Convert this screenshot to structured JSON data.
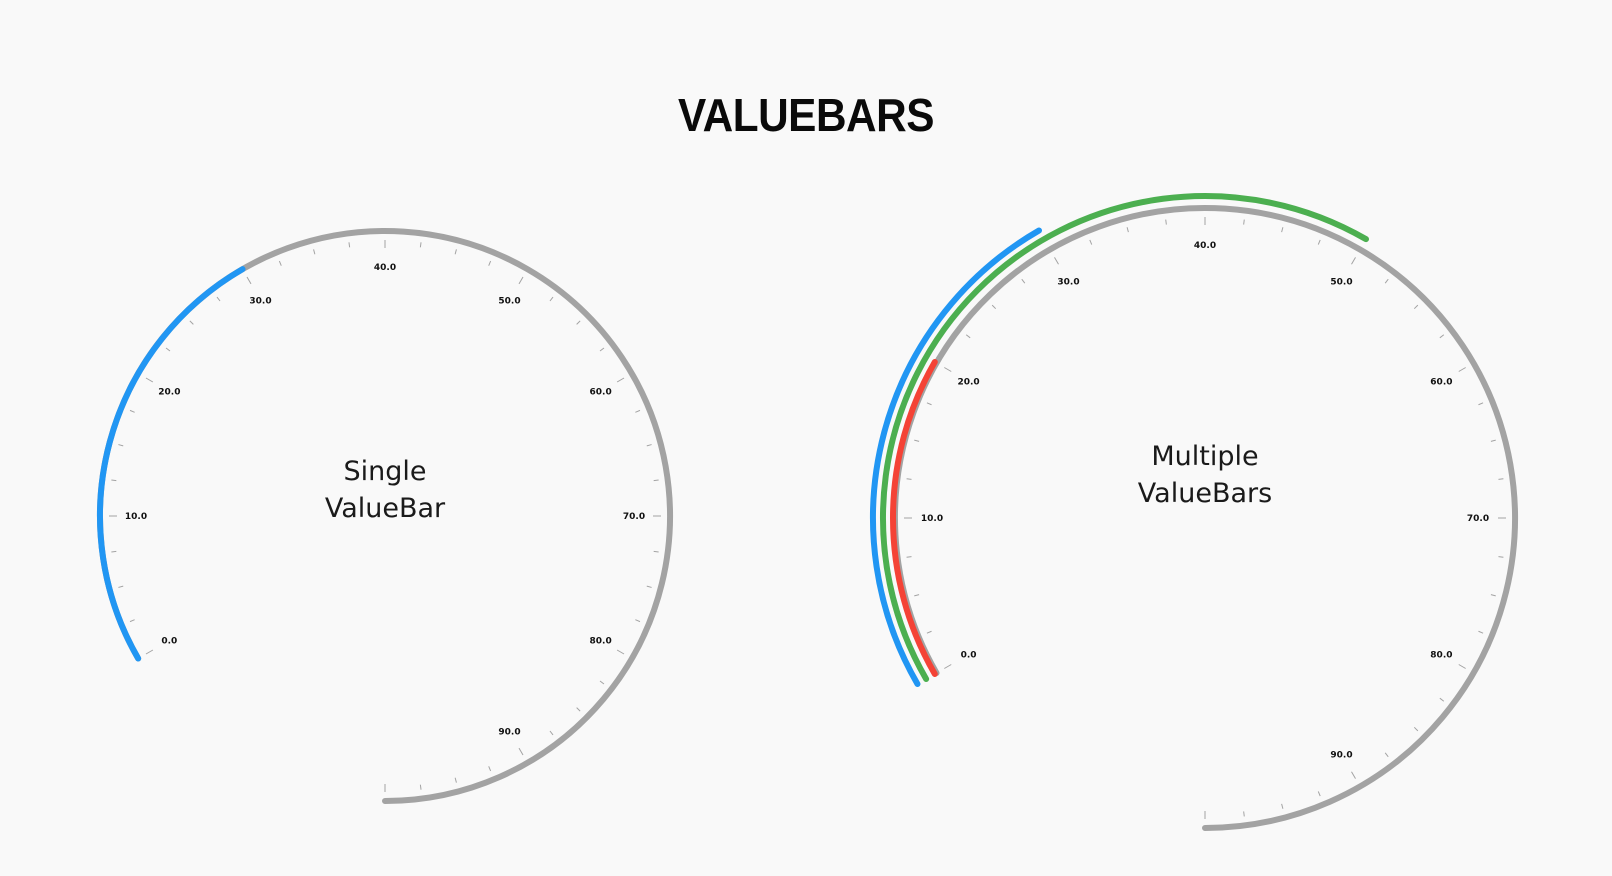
{
  "page": {
    "title": "VALUEBARS"
  },
  "colors": {
    "track": "#a3a3a3",
    "tick": "#a3a3a3",
    "blue": "#2196f3",
    "green": "#4caf50",
    "red": "#f44336"
  },
  "chart_data": [
    {
      "type": "gauge",
      "name": "single",
      "range": [
        0,
        100
      ],
      "start_angle_deg": 240,
      "sweep_deg": 300,
      "tick_labels": [
        "0.0",
        "10.0",
        "20.0",
        "30.0",
        "40.0",
        "50.0",
        "60.0",
        "70.0",
        "80.0",
        "90.0"
      ],
      "center_text": [
        "Single",
        "ValueBar"
      ],
      "value_bars": [
        {
          "color": "blue",
          "value": 30
        }
      ]
    },
    {
      "type": "gauge",
      "name": "multiple",
      "range": [
        0,
        100
      ],
      "start_angle_deg": 240,
      "sweep_deg": 300,
      "tick_labels": [
        "0.0",
        "10.0",
        "20.0",
        "30.0",
        "40.0",
        "50.0",
        "60.0",
        "70.0",
        "80.0",
        "90.0"
      ],
      "center_text": [
        "Multiple",
        "ValueBars"
      ],
      "value_bars": [
        {
          "color": "blue",
          "value": 30
        },
        {
          "color": "green",
          "value": 50
        },
        {
          "color": "red",
          "value": 20
        }
      ]
    }
  ]
}
